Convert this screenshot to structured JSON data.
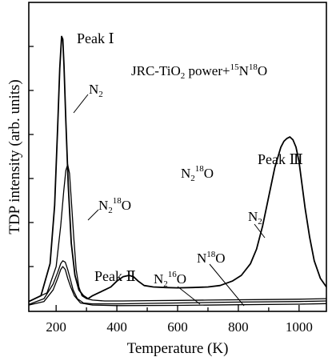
{
  "chart_data": {
    "type": "line",
    "title": "JRC-TiO₂ power+¹⁵N¹⁸O",
    "xlabel": "Temperature (K)",
    "ylabel": "TDP intensity (arb. units)",
    "xlim": [
      110,
      1090
    ],
    "ylim": [
      0,
      1.0
    ],
    "grid": false,
    "legend": "none",
    "x_ticks": [
      200,
      400,
      600,
      800,
      1000
    ],
    "title_parts": {
      "main": "JRC-TiO",
      "sub": "2",
      "mid": " power+",
      "sup1": "15",
      "n": "N",
      "sup2": "18",
      "o": "O"
    },
    "peak_labels": {
      "peak1": "Peak  Ⅰ",
      "peak2": "Peak  Ⅱ",
      "peak3": "Peak  Ⅲ"
    },
    "series_labels": {
      "n2_peak1": {
        "main": "N",
        "sub": "2"
      },
      "n2o18_low": {
        "main": "N",
        "sub": "2",
        "sup": "18",
        "tail": "O"
      },
      "n2o18_mid": {
        "main": "N",
        "sub": "2",
        "sup": "18",
        "tail": "O"
      },
      "n2_peak3": {
        "main": "N",
        "sub": "2"
      },
      "n2o16": {
        "main": "N",
        "sub": "2",
        "sup": "16",
        "tail": "O"
      },
      "no18": {
        "main": "N",
        "sup": "18",
        "tail": "O"
      }
    },
    "series": [
      {
        "name": "N₂",
        "x": [
          110,
          150,
          180,
          195,
          205,
          212,
          218,
          222,
          226,
          232,
          240,
          250,
          262,
          275,
          290,
          305,
          320,
          340,
          360,
          380,
          400,
          420,
          440,
          455,
          470,
          490,
          520,
          560,
          600,
          650,
          700,
          740,
          780,
          810,
          840,
          860,
          880,
          900,
          920,
          940,
          950,
          960,
          970,
          980,
          990,
          1000,
          1010,
          1020,
          1035,
          1050,
          1070,
          1090
        ],
        "y": [
          0.02,
          0.04,
          0.15,
          0.35,
          0.62,
          0.82,
          0.93,
          0.92,
          0.83,
          0.64,
          0.42,
          0.22,
          0.11,
          0.06,
          0.04,
          0.03,
          0.04,
          0.05,
          0.06,
          0.07,
          0.09,
          0.105,
          0.11,
          0.105,
          0.09,
          0.075,
          0.07,
          0.068,
          0.067,
          0.068,
          0.07,
          0.075,
          0.09,
          0.11,
          0.15,
          0.2,
          0.28,
          0.38,
          0.48,
          0.55,
          0.57,
          0.58,
          0.585,
          0.575,
          0.55,
          0.5,
          0.42,
          0.34,
          0.24,
          0.16,
          0.1,
          0.07
        ]
      },
      {
        "name": "N₂¹⁸O",
        "x": [
          110,
          170,
          200,
          215,
          225,
          232,
          238,
          244,
          250,
          258,
          266,
          275,
          285,
          300,
          320,
          360,
          420,
          500,
          600,
          700,
          800,
          900,
          1000,
          1090
        ],
        "y": [
          0.02,
          0.05,
          0.14,
          0.28,
          0.4,
          0.47,
          0.49,
          0.46,
          0.37,
          0.24,
          0.13,
          0.07,
          0.04,
          0.03,
          0.025,
          0.022,
          0.022,
          0.023,
          0.024,
          0.025,
          0.026,
          0.027,
          0.028,
          0.03
        ]
      },
      {
        "name": "N₂¹⁶O",
        "x": [
          110,
          160,
          190,
          205,
          215,
          222,
          230,
          238,
          246,
          256,
          270,
          290,
          320,
          400,
          600,
          800,
          1000,
          1090
        ],
        "y": [
          0.01,
          0.03,
          0.08,
          0.12,
          0.15,
          0.16,
          0.155,
          0.13,
          0.1,
          0.06,
          0.03,
          0.015,
          0.012,
          0.012,
          0.015,
          0.018,
          0.02,
          0.022
        ]
      },
      {
        "name": "N¹⁸O",
        "x": [
          110,
          160,
          190,
          205,
          215,
          222,
          230,
          238,
          248,
          260,
          280,
          320,
          400,
          600,
          800,
          1000,
          1090
        ],
        "y": [
          0.008,
          0.02,
          0.06,
          0.1,
          0.13,
          0.14,
          0.13,
          0.1,
          0.07,
          0.04,
          0.015,
          0.008,
          0.006,
          0.007,
          0.009,
          0.011,
          0.013
        ]
      }
    ]
  }
}
